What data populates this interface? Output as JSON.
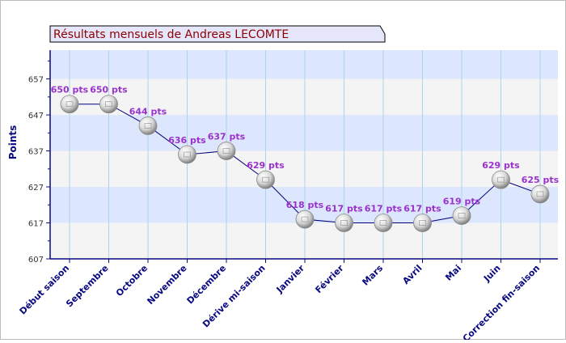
{
  "chart_data": {
    "type": "line",
    "title": "Résultats mensuels de  Andreas LECOMTE",
    "ylabel": "Points",
    "xlabel": "",
    "ylim": [
      607,
      665
    ],
    "yticks": [
      607,
      617,
      627,
      637,
      647,
      657
    ],
    "categories": [
      "Début saison",
      "Septembre",
      "Octobre",
      "Novembre",
      "Décembre",
      "Dérive mi-saison",
      "Janvier",
      "Février",
      "Mars",
      "Avril",
      "Mai",
      "Juin",
      "Correction fin-saison"
    ],
    "values": [
      650,
      650,
      644,
      636,
      637,
      629,
      618,
      617,
      617,
      617,
      619,
      629,
      625
    ],
    "point_labels": [
      "650 pts",
      "650 pts",
      "644 pts",
      "636 pts",
      "637 pts",
      "629 pts",
      "618 pts",
      "617 pts",
      "617 pts",
      "617 pts",
      "619 pts",
      "629 pts",
      "625 pts"
    ],
    "colors": {
      "title_text": "#8b0000",
      "title_bg": "#e6e6fa",
      "band_blue": "#dce6fc",
      "band_gray": "#f4f4f4",
      "axis": "#0a0a80",
      "line": "#00007a",
      "point_label": "#9933cc",
      "vgrid": "#a8d4ec"
    }
  }
}
